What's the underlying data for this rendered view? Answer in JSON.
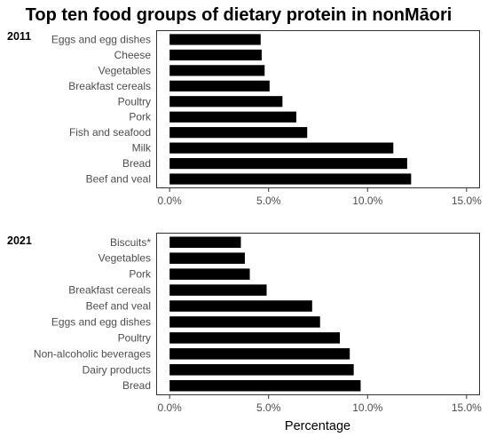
{
  "title": "Top ten food groups of dietary protein in nonMāori",
  "xlabel": "Percentage",
  "bar_color": "#000000",
  "chart_data": [
    {
      "type": "bar",
      "orientation": "horizontal",
      "panel_label": "2011",
      "categories": [
        "Eggs and egg dishes",
        "Cheese",
        "Vegetables",
        "Breakfast cereals",
        "Poultry",
        "Pork",
        "Fish and seafood",
        "Milk",
        "Bread",
        "Beef and veal"
      ],
      "values": [
        4.6,
        4.65,
        4.8,
        5.05,
        5.7,
        6.4,
        6.95,
        11.3,
        12.0,
        12.2
      ],
      "xlim": [
        -0.68,
        15.68
      ],
      "xticks": [
        0,
        5,
        10,
        15
      ],
      "xtick_labels": [
        "0.0%",
        "5.0%",
        "10.0%",
        "15.0%"
      ],
      "grid": false
    },
    {
      "type": "bar",
      "orientation": "horizontal",
      "panel_label": "2021",
      "categories": [
        "Biscuits*",
        "Vegetables",
        "Pork",
        "Breakfast cereals",
        "Beef and veal",
        "Eggs and egg dishes",
        "Poultry",
        "Non-alcoholic beverages",
        "Dairy products",
        "Bread"
      ],
      "values": [
        3.6,
        3.8,
        4.05,
        4.9,
        7.2,
        7.6,
        8.6,
        9.1,
        9.3,
        9.65
      ],
      "xlim": [
        -0.68,
        15.68
      ],
      "xticks": [
        0,
        5,
        10,
        15
      ],
      "xtick_labels": [
        "0.0%",
        "5.0%",
        "10.0%",
        "15.0%"
      ],
      "grid": false
    }
  ]
}
